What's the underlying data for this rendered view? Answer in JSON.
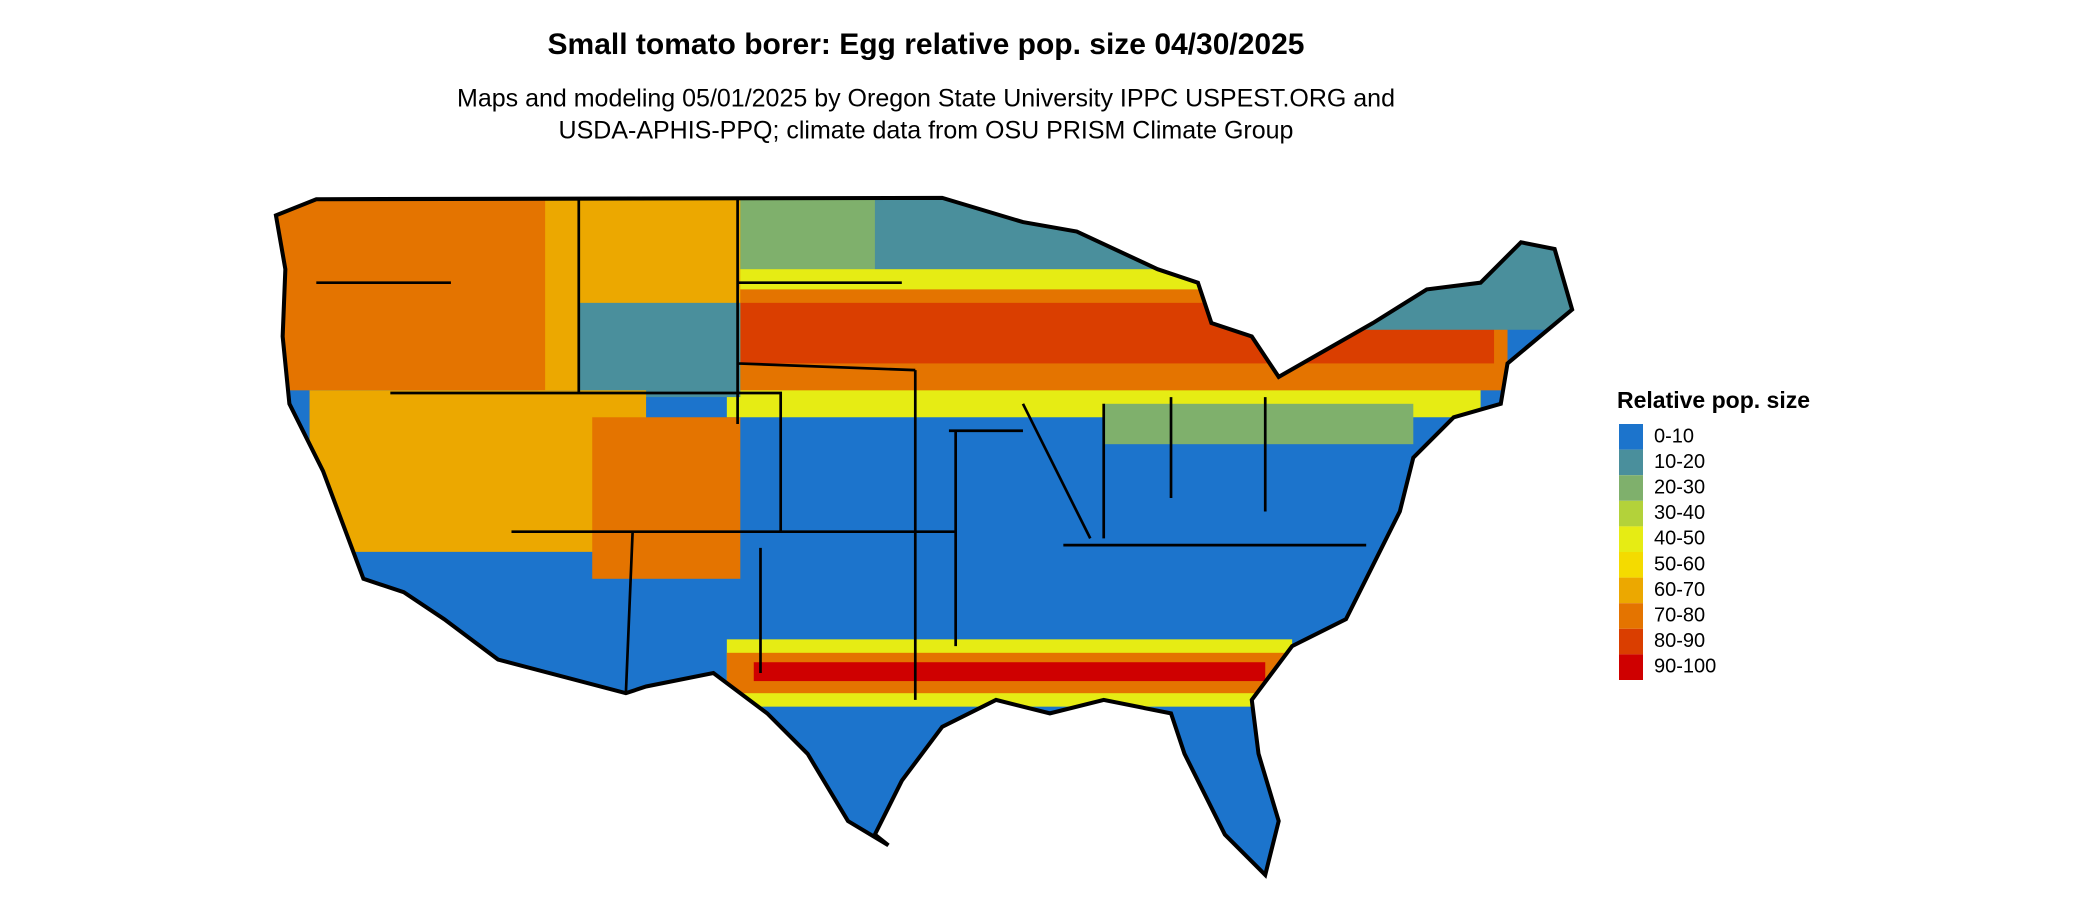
{
  "header": {
    "title": "Small tomato borer: Egg relative pop. size 04/30/2025",
    "subtitle": [
      "Maps and modeling 05/01/2025 by Oregon State University IPPC USPEST.ORG and",
      "USDA-APHIS-PPQ; climate data from OSU PRISM Climate Group"
    ]
  },
  "legend": {
    "title": "Relative pop. size",
    "items": [
      {
        "label": "0-10",
        "color": "#1c74cc"
      },
      {
        "label": "10-20",
        "color": "#4a8f9c"
      },
      {
        "label": "20-30",
        "color": "#7fb06c"
      },
      {
        "label": "30-40",
        "color": "#b3d23a"
      },
      {
        "label": "40-50",
        "color": "#e6ec14"
      },
      {
        "label": "50-60",
        "color": "#f4db00"
      },
      {
        "label": "60-70",
        "color": "#eca800"
      },
      {
        "label": "70-80",
        "color": "#e47400"
      },
      {
        "label": "80-90",
        "color": "#da3e00"
      },
      {
        "label": "90-100",
        "color": "#cf0000"
      }
    ]
  }
}
